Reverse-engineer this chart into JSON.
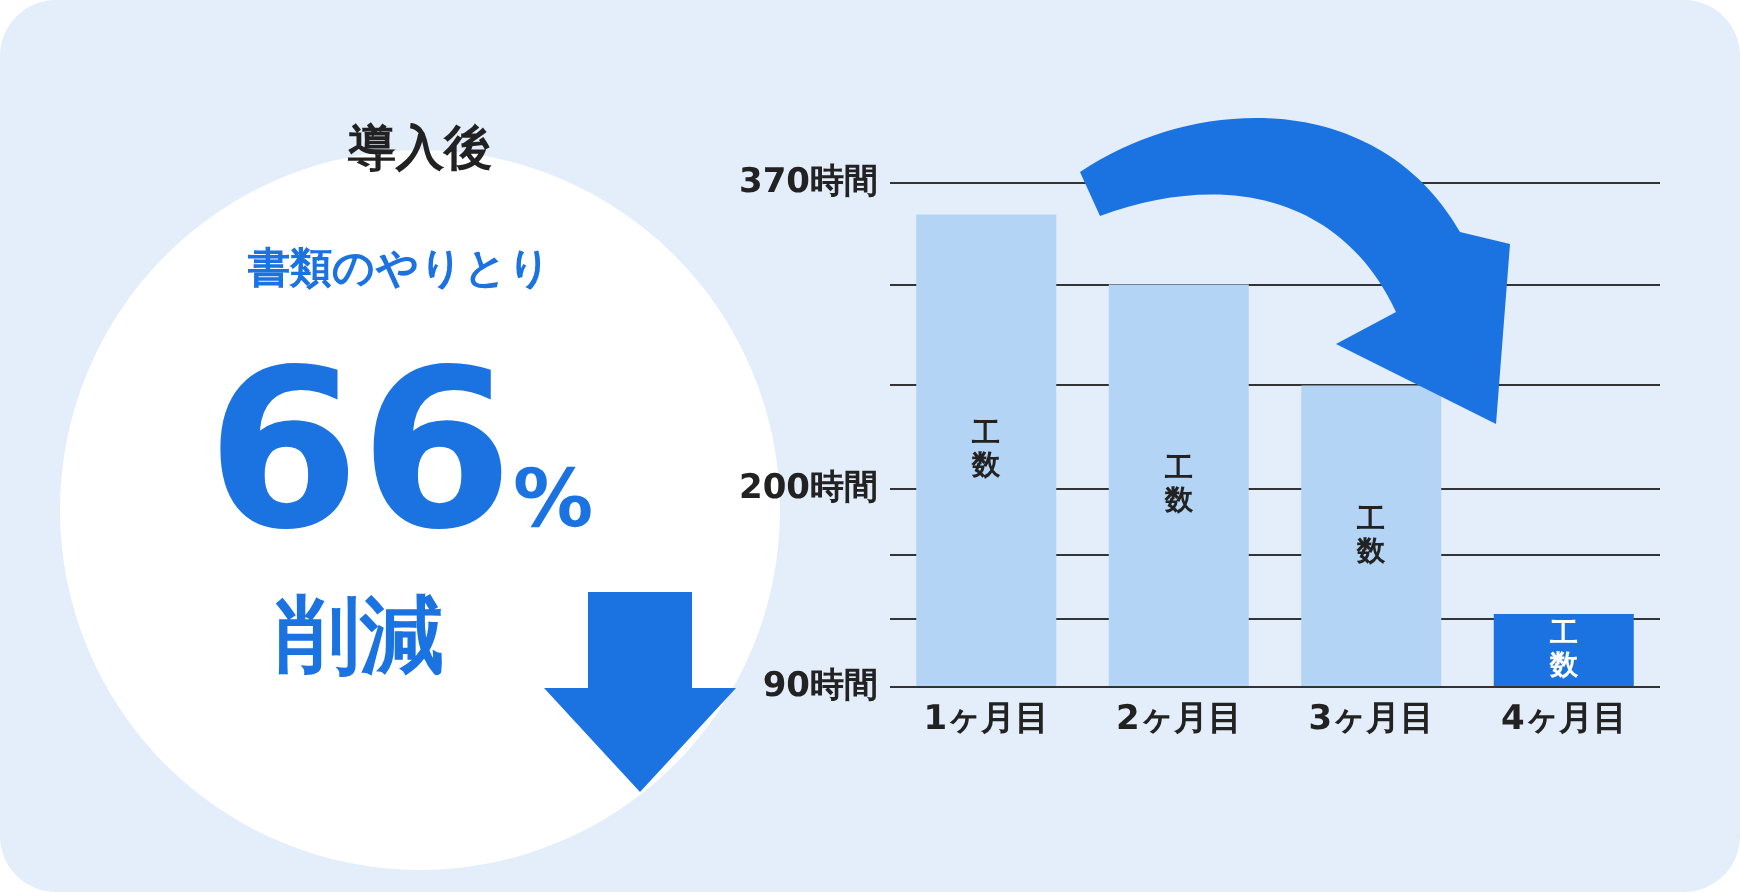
{
  "chart_data": {
    "type": "bar",
    "title": "導入後",
    "annotations": [
      "書類のやりとり",
      "66%",
      "削減"
    ],
    "categories": [
      "1ヶ月目",
      "2ヶ月目",
      "3ヶ月目",
      "4ヶ月目"
    ],
    "values": [
      352,
      313,
      257,
      130
    ],
    "colors": [
      "#b3d4f5",
      "#b3d4f5",
      "#b3d4f5",
      "#1a73e0"
    ],
    "value_labels": [
      "工数",
      "工数",
      "工数",
      "工数"
    ],
    "ylim": [
      90,
      370
    ],
    "yticks": [
      {
        "value": 90,
        "label": "90時間"
      },
      {
        "value": 127,
        "label": null
      },
      {
        "value": 163,
        "label": null
      },
      {
        "value": 200,
        "label": "200時間"
      },
      {
        "value": 257,
        "label": null
      },
      {
        "value": 313,
        "label": null
      },
      {
        "value": 370,
        "label": "370時間"
      }
    ],
    "grid": true
  }
}
